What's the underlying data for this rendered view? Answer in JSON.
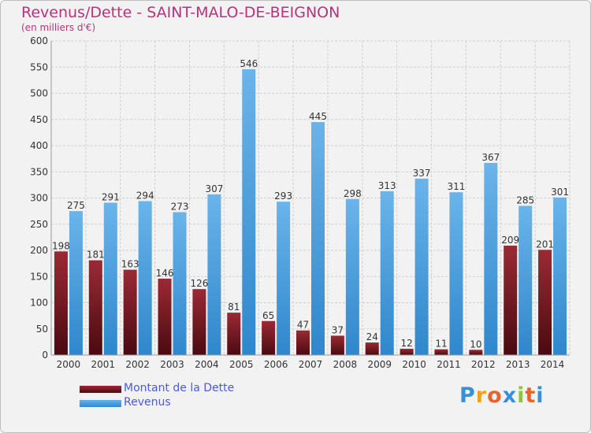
{
  "title": "Revenus/Dette - SAINT-MALO-DE-BEIGNON",
  "subtitle": "(en milliers d'€)",
  "colors": {
    "title": "#b5337a",
    "dette_light": "#9a2a35",
    "dette_dark": "#4a0a10",
    "revenus_light": "#6ab4ea",
    "revenus_dark": "#2f87cc",
    "legend_text": "#4a5bd9",
    "grid": "#d0d0d0",
    "axis_text": "#333333"
  },
  "logo": {
    "text": "Proxiti",
    "letters": [
      "P",
      "r",
      "o",
      "x",
      "i",
      "t",
      "i"
    ],
    "letter_colors": [
      "#3a8fd9",
      "#f2a11f",
      "#e8642c",
      "#3a8fd9",
      "#8cc63f",
      "#e8642c",
      "#3a8fd9"
    ]
  },
  "chart_data": {
    "type": "bar",
    "categories": [
      "2000",
      "2001",
      "2002",
      "2003",
      "2004",
      "2005",
      "2006",
      "2007",
      "2008",
      "2009",
      "2010",
      "2011",
      "2012",
      "2013",
      "2014"
    ],
    "series": [
      {
        "name": "Montant de la Dette",
        "values": [
          198,
          181,
          163,
          146,
          126,
          81,
          65,
          47,
          37,
          24,
          12,
          11,
          10,
          209,
          201
        ],
        "labels": [
          "198",
          "181",
          "163",
          "146",
          "126",
          "81",
          "65",
          "47",
          "37",
          "24",
          "12",
          "11",
          "10",
          "209",
          "201"
        ]
      },
      {
        "name": "Revenus",
        "values": [
          275,
          291,
          294,
          273,
          307,
          546,
          293,
          445,
          298,
          313,
          337,
          311,
          367,
          285,
          301
        ],
        "labels": [
          "275",
          "291",
          "294",
          "273",
          "307",
          "546",
          "293",
          "445",
          "298",
          "313",
          "337",
          "311",
          "367",
          "285",
          "301"
        ]
      }
    ],
    "yticks": [
      "0",
      "50",
      "100",
      "150",
      "200",
      "250",
      "300",
      "350",
      "400",
      "450",
      "500",
      "550",
      "600"
    ],
    "ylim": [
      0,
      600
    ],
    "grid": true,
    "legend_position": "bottom-left"
  }
}
